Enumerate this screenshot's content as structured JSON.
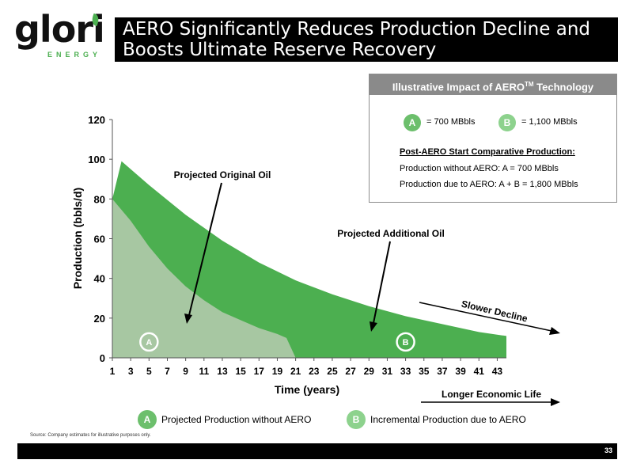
{
  "logo": {
    "word": "glori",
    "sub": "ENERGY"
  },
  "title": "AERO Significantly Reduces Production Decline and Boosts Ultimate Reserve Recovery",
  "info_box": {
    "header": "Illustrative Impact of AERO",
    "header_sup": "TM",
    "header_suffix": " Technology",
    "badge_a": "A",
    "value_a": "= 700 MBbls",
    "badge_b": "B",
    "value_b": "= 1,100 MBbls",
    "heading": "Post-AERO Start Comparative Production:",
    "line1": "Production without AERO:  A = 700 MBbls",
    "line2": "Production due to AERO:  A + B = 1,800 MBbls"
  },
  "legend": [
    {
      "badge": "A",
      "label": "Projected Production without AERO"
    },
    {
      "badge": "B",
      "label": "Incremental Production due to AERO"
    }
  ],
  "source": "Source: Company estimates for illustrative purposes only.",
  "page_number": "33",
  "colors": {
    "original_fill": "#a7c7a2",
    "additional_fill": "#4caf50",
    "badge_a": "#6cbf6c",
    "badge_b": "#8dd28d"
  },
  "chart_data": {
    "type": "area",
    "xlabel": "Time (years)",
    "ylabel": "Production (bbls/d)",
    "xlim": [
      1,
      44
    ],
    "ylim": [
      0,
      120
    ],
    "x_ticks": [
      1,
      3,
      5,
      7,
      9,
      11,
      13,
      15,
      17,
      19,
      21,
      23,
      25,
      27,
      29,
      31,
      33,
      35,
      37,
      39,
      41,
      43
    ],
    "y_ticks": [
      0,
      20,
      40,
      60,
      80,
      100,
      120
    ],
    "series": [
      {
        "name": "Projected Original Oil",
        "x": [
          1,
          3,
          5,
          7,
          9,
          11,
          13,
          15,
          17,
          19,
          20,
          21
        ],
        "values": [
          80,
          69,
          56,
          45,
          36,
          29,
          23,
          19,
          15,
          12,
          10,
          0
        ]
      },
      {
        "name": "Projected Additional Oil",
        "x": [
          1,
          2,
          5,
          9,
          13,
          17,
          21,
          25,
          29,
          33,
          37,
          41,
          44
        ],
        "values": [
          80,
          99,
          87,
          72,
          59,
          48,
          39,
          32,
          26,
          21,
          17,
          13,
          11
        ]
      }
    ],
    "annotations": [
      {
        "text": "Projected Original Oil",
        "x": 9,
        "y": 18
      },
      {
        "text": "Projected Additional Oil",
        "x": 29,
        "y": 13
      },
      {
        "text": "Slower Decline"
      },
      {
        "text": "Longer Economic Life"
      }
    ],
    "area_labels": [
      {
        "text": "A",
        "x": 5,
        "y": 8
      },
      {
        "text": "B",
        "x": 33,
        "y": 8
      }
    ]
  }
}
